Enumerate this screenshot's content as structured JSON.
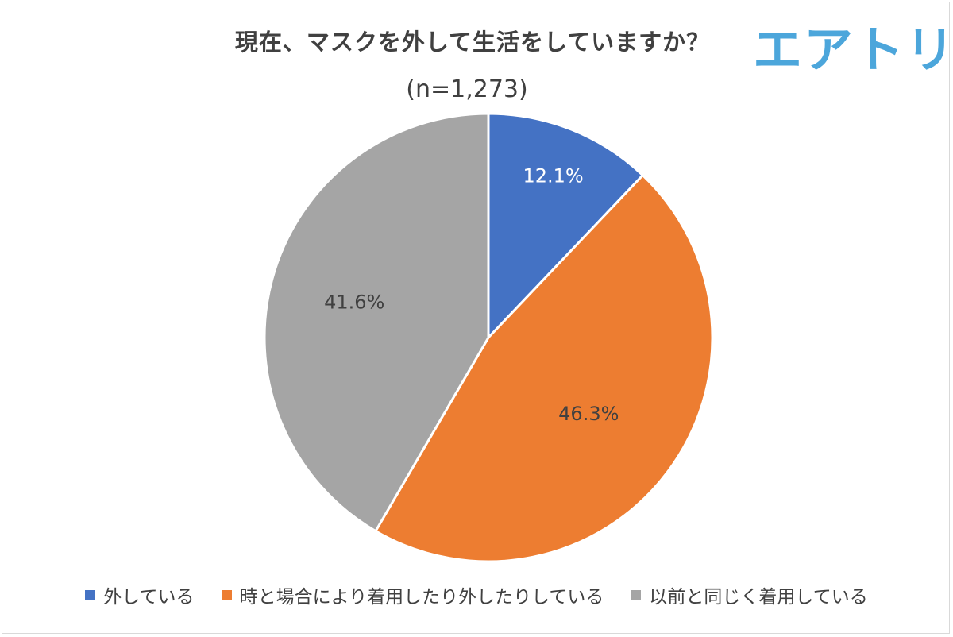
{
  "logo_text": "エアトリ",
  "chart_data": {
    "type": "pie",
    "title": "現在、マスクを外して生活をしていますか？",
    "subtitle": "(n=1,273)",
    "categories": [
      "外している",
      "時と場合により着用したり外したりしている",
      "以前と同じく着用している"
    ],
    "values": [
      12.1,
      46.3,
      41.6
    ],
    "labels": [
      "12.1%",
      "46.3%",
      "41.6%"
    ],
    "colors": [
      "#4472c4",
      "#ed7d31",
      "#a5a5a5"
    ],
    "label_colors": [
      "#ffffff",
      "#404040",
      "#404040"
    ],
    "start_angle": "12 o'clock",
    "direction": "clockwise",
    "legend_position": "bottom"
  }
}
